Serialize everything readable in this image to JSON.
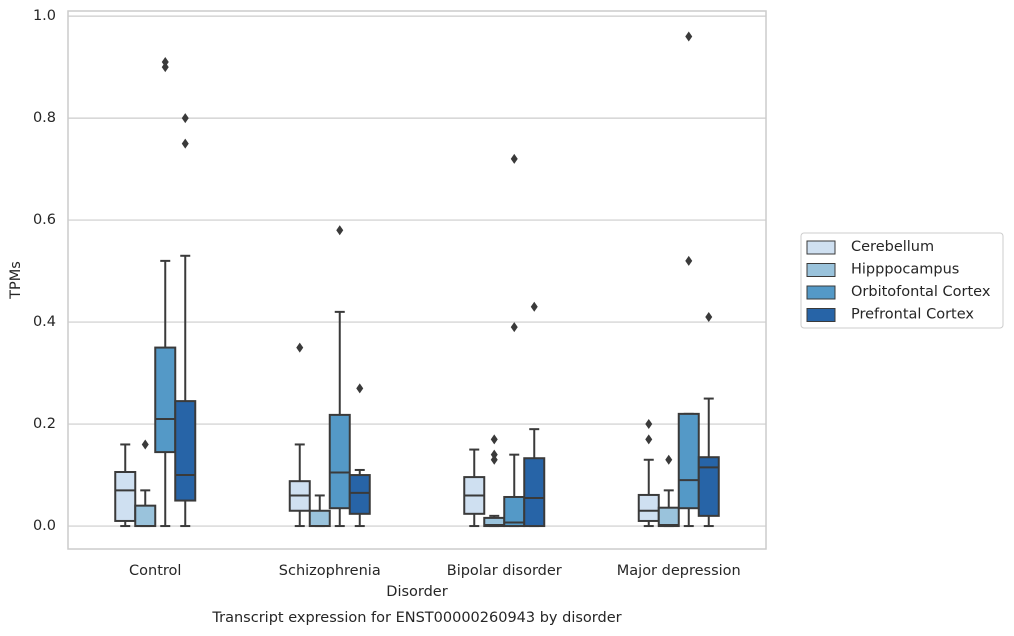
{
  "chart_data": {
    "type": "box",
    "xlabel": "Disorder",
    "ylabel": "TPMs",
    "caption": "Transcript expression for ENST00000260943 by disorder",
    "categories": [
      "Control",
      "Schizophrenia",
      "Bipolar disorder",
      "Major depression"
    ],
    "ylim": [
      -0.045,
      1.01
    ],
    "yticks": [
      {
        "value": 0,
        "label": "0.0"
      },
      0.2,
      0.4,
      0.6,
      0.8,
      {
        "value": 1,
        "label": "1.0"
      }
    ],
    "grid": true,
    "legend": "right",
    "series": [
      {
        "name": "Cerebellum",
        "color": "#cfe0f1",
        "boxes": [
          {
            "low": 0,
            "q1": 0.01,
            "median": 0.07,
            "q3": 0.106,
            "high": 0.16,
            "outliers": []
          },
          {
            "low": 0,
            "q1": 0.03,
            "median": 0.06,
            "q3": 0.088,
            "high": 0.16,
            "outliers": [
              0.35
            ]
          },
          {
            "low": 0,
            "q1": 0.024,
            "median": 0.06,
            "q3": 0.096,
            "high": 0.15,
            "outliers": []
          },
          {
            "low": 0,
            "q1": 0.01,
            "median": 0.03,
            "q3": 0.061,
            "high": 0.13,
            "outliers": [
              0.17,
              0.2
            ]
          }
        ]
      },
      {
        "name": "Hipppocampus",
        "color": "#9ac3dc",
        "boxes": [
          {
            "low": 0,
            "q1": 0,
            "median": 0,
            "q3": 0.04,
            "high": 0.07,
            "outliers": [
              0.16
            ]
          },
          {
            "low": 0,
            "q1": 0,
            "median": 0,
            "q3": 0.03,
            "high": 0.06,
            "outliers": []
          },
          {
            "low": 0,
            "q1": 0,
            "median": 0.002,
            "q3": 0.016,
            "high": 0.02,
            "outliers": [
              0.13,
              0.14,
              0.17
            ]
          },
          {
            "low": 0,
            "q1": 0,
            "median": 0.002,
            "q3": 0.036,
            "high": 0.07,
            "outliers": [
              0.13
            ]
          }
        ]
      },
      {
        "name": "Orbitofontal Cortex",
        "color": "#5499c7",
        "boxes": [
          {
            "low": 0,
            "q1": 0.145,
            "median": 0.21,
            "q3": 0.35,
            "high": 0.52,
            "outliers": [
              0.9,
              0.91
            ]
          },
          {
            "low": 0,
            "q1": 0.035,
            "median": 0.105,
            "q3": 0.218,
            "high": 0.42,
            "outliers": [
              0.58
            ]
          },
          {
            "low": 0,
            "q1": 0,
            "median": 0.007,
            "q3": 0.057,
            "high": 0.14,
            "outliers": [
              0.39,
              0.72
            ]
          },
          {
            "low": 0,
            "q1": 0.035,
            "median": 0.09,
            "q3": 0.22,
            "high": 0.22,
            "outliers": [
              0.52,
              0.96
            ]
          }
        ]
      },
      {
        "name": "Prefrontal Cortex",
        "color": "#2764a7",
        "boxes": [
          {
            "low": 0,
            "q1": 0.05,
            "median": 0.1,
            "q3": 0.245,
            "high": 0.53,
            "outliers": [
              0.75,
              0.8
            ]
          },
          {
            "low": 0,
            "q1": 0.024,
            "median": 0.065,
            "q3": 0.1,
            "high": 0.11,
            "outliers": [
              0.27
            ]
          },
          {
            "low": 0,
            "q1": 0,
            "median": 0.055,
            "q3": 0.133,
            "high": 0.19,
            "outliers": [
              0.43
            ]
          },
          {
            "low": 0,
            "q1": 0.02,
            "median": 0.115,
            "q3": 0.135,
            "high": 0.25,
            "outliers": [
              0.41
            ]
          }
        ]
      }
    ]
  }
}
